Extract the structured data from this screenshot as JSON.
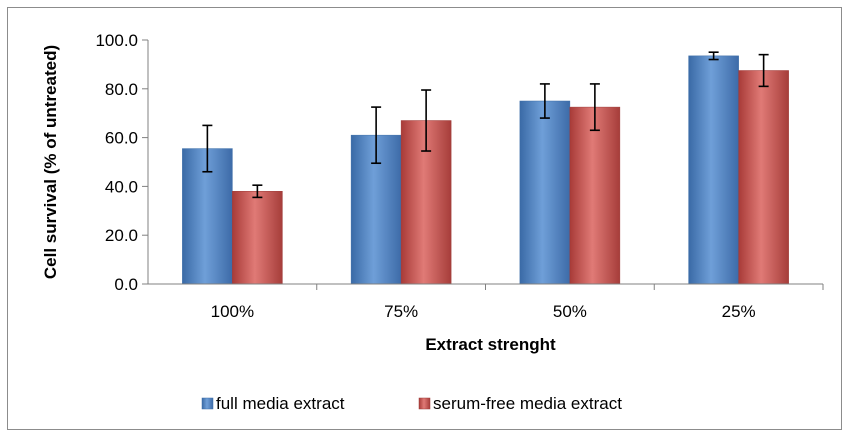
{
  "chart_data": {
    "type": "bar",
    "categories": [
      "100%",
      "75%",
      "50%",
      "25%"
    ],
    "series": [
      {
        "name": "full media extract",
        "color": "#4f81bd",
        "values": [
          55.5,
          61.0,
          75.0,
          93.5
        ],
        "error": [
          9.5,
          11.5,
          7.0,
          1.5
        ]
      },
      {
        "name": "serum-free media extract",
        "color": "#c0504d",
        "values": [
          38.0,
          67.0,
          72.5,
          87.5
        ],
        "error": [
          2.5,
          12.5,
          9.5,
          6.5
        ]
      }
    ],
    "xlabel": "Extract strenght",
    "ylabel": "Cell survival (% of untreated)",
    "ylim": [
      0,
      100
    ],
    "yticks": [
      "0.0",
      "20.0",
      "40.0",
      "60.0",
      "80.0",
      "100.0"
    ],
    "grid": false,
    "legend_position": "bottom"
  }
}
